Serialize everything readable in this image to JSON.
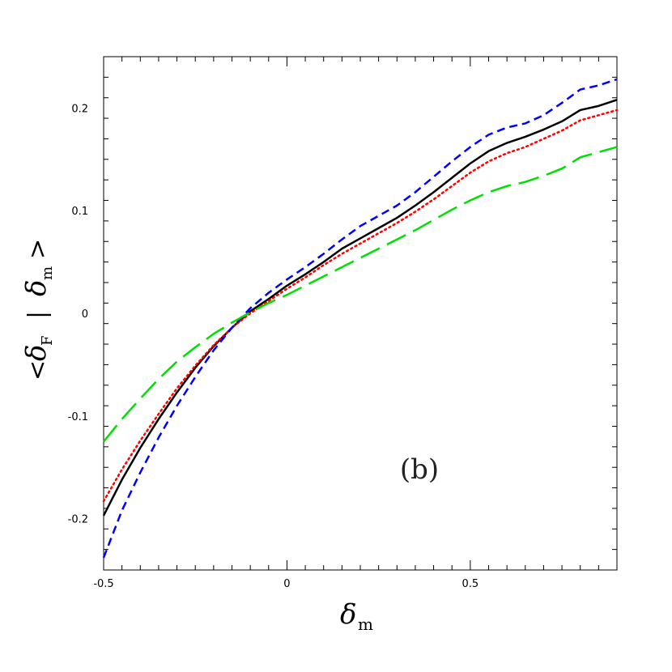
{
  "chart_data": {
    "type": "line",
    "title": "",
    "panel_label": "(b)",
    "xlabel": {
      "symbol": "δ",
      "subscript": "m"
    },
    "ylabel": {
      "open": "<",
      "symbol": "δ",
      "subscript": "F",
      "sep": "|",
      "symbol2": "δ",
      "subscript2": "m",
      "close": ">"
    },
    "xlim": [
      -0.5,
      0.9
    ],
    "ylim": [
      -0.25,
      0.25
    ],
    "xticks": [
      -0.5,
      0,
      0.5
    ],
    "xtick_labels": [
      "-0.5",
      "0",
      "0.5"
    ],
    "yticks": [
      -0.2,
      -0.1,
      0,
      0.1,
      0.2
    ],
    "ytick_labels": [
      "-0.2",
      "-0.1",
      "0",
      "0.1",
      "0.2"
    ],
    "grid": false,
    "legend": "none",
    "series": [
      {
        "color": "#000000",
        "style": "solid",
        "x": [
          -0.5,
          -0.45,
          -0.4,
          -0.35,
          -0.3,
          -0.25,
          -0.2,
          -0.15,
          -0.1,
          -0.05,
          0,
          0.05,
          0.1,
          0.15,
          0.2,
          0.25,
          0.3,
          0.35,
          0.4,
          0.45,
          0.5,
          0.55,
          0.6,
          0.65,
          0.7,
          0.75,
          0.8,
          0.85,
          0.9
        ],
        "y": [
          -0.197,
          -0.162,
          -0.131,
          -0.103,
          -0.077,
          -0.053,
          -0.032,
          -0.014,
          0.002,
          0.014,
          0.027,
          0.038,
          0.05,
          0.063,
          0.073,
          0.083,
          0.093,
          0.105,
          0.118,
          0.132,
          0.146,
          0.158,
          0.166,
          0.172,
          0.179,
          0.187,
          0.198,
          0.202,
          0.208
        ]
      },
      {
        "color": "#ff0000",
        "style": "dotted",
        "x": [
          -0.5,
          -0.45,
          -0.4,
          -0.35,
          -0.3,
          -0.25,
          -0.2,
          -0.15,
          -0.1,
          -0.05,
          0,
          0.05,
          0.1,
          0.15,
          0.2,
          0.25,
          0.3,
          0.35,
          0.4,
          0.45,
          0.5,
          0.55,
          0.6,
          0.65,
          0.7,
          0.75,
          0.8,
          0.85,
          0.9
        ],
        "y": [
          -0.183,
          -0.152,
          -0.124,
          -0.098,
          -0.073,
          -0.051,
          -0.031,
          -0.014,
          0.0,
          0.012,
          0.024,
          0.035,
          0.047,
          0.058,
          0.068,
          0.078,
          0.088,
          0.099,
          0.111,
          0.124,
          0.137,
          0.148,
          0.156,
          0.162,
          0.17,
          0.178,
          0.188,
          0.193,
          0.198
        ]
      },
      {
        "color": "#0000ff",
        "style": "short-dash",
        "x": [
          -0.5,
          -0.45,
          -0.4,
          -0.35,
          -0.3,
          -0.25,
          -0.2,
          -0.15,
          -0.1,
          -0.05,
          0,
          0.05,
          0.1,
          0.15,
          0.2,
          0.25,
          0.3,
          0.35,
          0.4,
          0.45,
          0.5,
          0.55,
          0.6,
          0.65,
          0.7,
          0.75,
          0.8,
          0.85,
          0.9
        ],
        "y": [
          -0.238,
          -0.192,
          -0.155,
          -0.121,
          -0.09,
          -0.062,
          -0.036,
          -0.014,
          0.005,
          0.02,
          0.033,
          0.045,
          0.058,
          0.072,
          0.085,
          0.095,
          0.105,
          0.118,
          0.133,
          0.148,
          0.162,
          0.174,
          0.181,
          0.185,
          0.193,
          0.205,
          0.218,
          0.222,
          0.228
        ]
      },
      {
        "color": "#00e000",
        "style": "long-dash",
        "x": [
          -0.5,
          -0.45,
          -0.4,
          -0.35,
          -0.3,
          -0.25,
          -0.2,
          -0.15,
          -0.1,
          -0.05,
          0,
          0.05,
          0.1,
          0.15,
          0.2,
          0.25,
          0.3,
          0.35,
          0.4,
          0.45,
          0.5,
          0.55,
          0.6,
          0.65,
          0.7,
          0.75,
          0.8,
          0.85,
          0.9
        ],
        "y": [
          -0.125,
          -0.103,
          -0.083,
          -0.064,
          -0.047,
          -0.033,
          -0.02,
          -0.009,
          0.001,
          0.01,
          0.018,
          0.027,
          0.036,
          0.045,
          0.054,
          0.063,
          0.072,
          0.081,
          0.091,
          0.101,
          0.11,
          0.118,
          0.124,
          0.128,
          0.134,
          0.141,
          0.152,
          0.157,
          0.162
        ]
      }
    ]
  }
}
